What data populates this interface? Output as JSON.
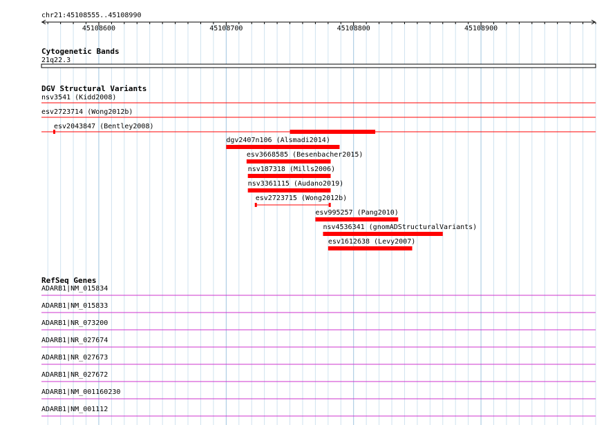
{
  "region": {
    "label": "chr21:45108555..45108990",
    "start": 45108555,
    "end": 45108990,
    "ticks": [
      {
        "pos": 45108600,
        "label": "45108600"
      },
      {
        "pos": 45108700,
        "label": "45108700"
      },
      {
        "pos": 45108800,
        "label": "45108800"
      },
      {
        "pos": 45108900,
        "label": "45108900"
      }
    ]
  },
  "colors": {
    "grid_major": "#9ec5df",
    "grid_minor": "#cfe2ef",
    "variant": "#ff0000",
    "gene": "#cc33cc"
  },
  "tracks": {
    "cytoband": {
      "title": "Cytogenetic Bands",
      "band": "21q22.3"
    },
    "dgv": {
      "title": "DGV Structural Variants",
      "features": [
        {
          "label": "nsv3541 (Kidd2008)",
          "style": "line"
        },
        {
          "label": "esv2723714 (Wong2012b)",
          "style": "line"
        },
        {
          "label": "esv2043847 (Bentley2008)",
          "style": "line_thick",
          "thick_start": 45108750,
          "thick_end": 45108817
        },
        {
          "label": "dgv2407n106 (Alsmadi2014)",
          "style": "bar",
          "start": 45108700,
          "end": 45108789
        },
        {
          "label": "esv3668585 (Besenbacher2015)",
          "style": "bar",
          "start": 45108716,
          "end": 45108782
        },
        {
          "label": "nsv187318 (Mills2006)",
          "style": "bar",
          "start": 45108717,
          "end": 45108782
        },
        {
          "label": "nsv3361115 (Audano2019)",
          "style": "bar",
          "start": 45108717,
          "end": 45108782
        },
        {
          "label": "esv2723715 (Wong2012b)",
          "style": "interval",
          "start": 45108723,
          "end": 45108781
        },
        {
          "label": "esv995257 (Pang2010)",
          "style": "bar",
          "start": 45108770,
          "end": 45108835
        },
        {
          "label": "nsv4536341 (gnomADStructuralVariants)",
          "style": "bar",
          "start": 45108776,
          "end": 45108870
        },
        {
          "label": "esv1612638 (Levy2007)",
          "style": "bar",
          "start": 45108780,
          "end": 45108846
        }
      ]
    },
    "refseq": {
      "title": "RefSeq Genes",
      "genes": [
        "ADARB1|NM_015834",
        "ADARB1|NM_015833",
        "ADARB1|NR_073200",
        "ADARB1|NR_027674",
        "ADARB1|NR_027673",
        "ADARB1|NR_027672",
        "ADARB1|NM_001160230",
        "ADARB1|NM_001112"
      ]
    }
  }
}
